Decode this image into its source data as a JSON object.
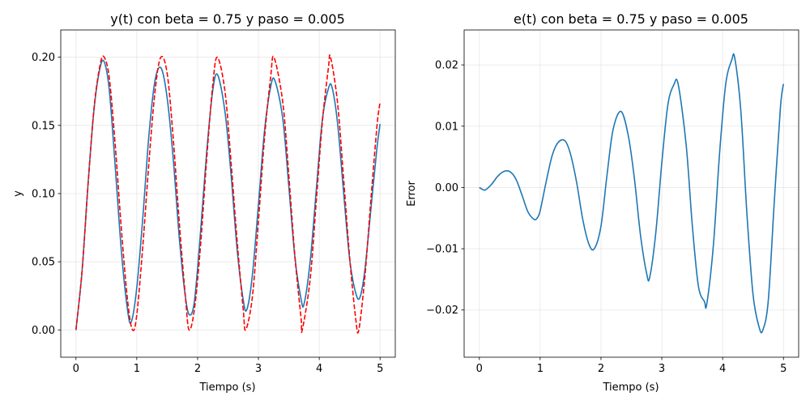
{
  "chart_data": [
    {
      "type": "line",
      "title": "y(t) con beta = 0.75 y paso = 0.005",
      "xlabel": "Tiempo (s)",
      "ylabel": "y",
      "xlim": [
        -0.25,
        5.25
      ],
      "ylim": [
        -0.02,
        0.22
      ],
      "xticks": [
        0,
        1,
        2,
        3,
        4,
        5
      ],
      "xtick_labels": [
        "0",
        "1",
        "2",
        "3",
        "4",
        "5"
      ],
      "yticks": [
        0.0,
        0.05,
        0.1,
        0.15,
        0.2
      ],
      "ytick_labels": [
        "0.00",
        "0.05",
        "0.10",
        "0.15",
        "0.20"
      ],
      "grid": true,
      "legend": false,
      "series": [
        {
          "style": "solid",
          "color": "#1f77b4",
          "x": [
            0,
            0.1,
            0.2,
            0.3,
            0.4,
            0.47,
            0.55,
            0.65,
            0.75,
            0.85,
            0.91,
            1.0,
            1.1,
            1.2,
            1.3,
            1.4,
            1.5,
            1.6,
            1.7,
            1.8,
            1.87,
            1.95,
            2.05,
            2.15,
            2.25,
            2.33,
            2.45,
            2.55,
            2.65,
            2.75,
            2.81,
            2.9,
            3.0,
            3.1,
            3.2,
            3.27,
            3.4,
            3.5,
            3.6,
            3.7,
            3.75,
            3.85,
            3.95,
            4.05,
            4.15,
            4.21,
            4.3,
            4.4,
            4.5,
            4.6,
            4.67,
            4.75,
            4.85,
            4.95,
            5.0
          ],
          "y": [
            0.0,
            0.043,
            0.108,
            0.163,
            0.193,
            0.196,
            0.175,
            0.117,
            0.056,
            0.014,
            0.006,
            0.031,
            0.083,
            0.143,
            0.183,
            0.192,
            0.17,
            0.125,
            0.067,
            0.024,
            0.011,
            0.022,
            0.073,
            0.131,
            0.176,
            0.187,
            0.16,
            0.114,
            0.059,
            0.022,
            0.015,
            0.04,
            0.092,
            0.146,
            0.178,
            0.183,
            0.155,
            0.105,
            0.053,
            0.023,
            0.019,
            0.05,
            0.102,
            0.154,
            0.177,
            0.178,
            0.152,
            0.101,
            0.052,
            0.027,
            0.024,
            0.044,
            0.089,
            0.134,
            0.151
          ]
        },
        {
          "style": "dashed",
          "color": "#ff0000",
          "x": [
            0,
            0.1,
            0.2,
            0.3,
            0.4,
            0.465,
            0.55,
            0.65,
            0.75,
            0.85,
            0.93,
            1.0,
            1.1,
            1.2,
            1.3,
            1.395,
            1.5,
            1.6,
            1.7,
            1.8,
            1.86,
            1.95,
            2.05,
            2.15,
            2.25,
            2.325,
            2.45,
            2.55,
            2.65,
            2.75,
            2.79,
            2.9,
            3.0,
            3.1,
            3.2,
            3.255,
            3.4,
            3.5,
            3.6,
            3.7,
            3.72,
            3.85,
            3.95,
            4.05,
            4.15,
            4.185,
            4.3,
            4.4,
            4.5,
            4.6,
            4.65,
            4.75,
            4.85,
            4.95,
            5.0
          ],
          "y": [
            0.0,
            0.043,
            0.107,
            0.164,
            0.195,
            0.2,
            0.184,
            0.133,
            0.072,
            0.021,
            0.0,
            0.011,
            0.062,
            0.123,
            0.175,
            0.2,
            0.188,
            0.14,
            0.078,
            0.024,
            0.0,
            0.016,
            0.063,
            0.126,
            0.18,
            0.2,
            0.175,
            0.123,
            0.065,
            0.015,
            0.0,
            0.024,
            0.08,
            0.141,
            0.185,
            0.2,
            0.167,
            0.113,
            0.054,
            0.009,
            0.0,
            0.037,
            0.094,
            0.152,
            0.192,
            0.2,
            0.167,
            0.111,
            0.053,
            0.008,
            0.0,
            0.039,
            0.096,
            0.15,
            0.167
          ]
        }
      ]
    },
    {
      "type": "line",
      "title": "e(t) con beta = 0.75 y paso = 0.005",
      "xlabel": "Tiempo (s)",
      "ylabel": "Error",
      "xlim": [
        -0.25,
        5.25
      ],
      "ylim": [
        -0.0277,
        0.0257
      ],
      "xticks": [
        0,
        1,
        2,
        3,
        4,
        5
      ],
      "xtick_labels": [
        "0",
        "1",
        "2",
        "3",
        "4",
        "5"
      ],
      "yticks": [
        -0.02,
        -0.01,
        0.0,
        0.01,
        0.02
      ],
      "ytick_labels": [
        "−0.02",
        "−0.01",
        "0.00",
        "0.01",
        "0.02"
      ],
      "grid": true,
      "legend": false,
      "series": [
        {
          "style": "solid",
          "color": "#1f77b4",
          "x": [
            0,
            0.05,
            0.1,
            0.2,
            0.3,
            0.4,
            0.5,
            0.6,
            0.7,
            0.8,
            0.9,
            0.95,
            1.0,
            1.1,
            1.2,
            1.3,
            1.41,
            1.5,
            1.6,
            1.7,
            1.8,
            1.89,
            2.0,
            2.1,
            2.2,
            2.33,
            2.45,
            2.55,
            2.65,
            2.75,
            2.8,
            2.9,
            3.0,
            3.1,
            3.2,
            3.27,
            3.4,
            3.5,
            3.6,
            3.7,
            3.74,
            3.85,
            3.95,
            4.05,
            4.15,
            4.2,
            4.3,
            4.4,
            4.5,
            4.6,
            4.66,
            4.75,
            4.85,
            4.95,
            5.0
          ],
          "y": [
            0.0,
            -0.0003,
            -0.0004,
            0.0005,
            0.0018,
            0.0026,
            0.0026,
            0.0014,
            -0.0012,
            -0.004,
            -0.0052,
            -0.005,
            -0.0038,
            0.001,
            0.0053,
            0.0074,
            0.0076,
            0.0054,
            0.0008,
            -0.0052,
            -0.0092,
            -0.01,
            -0.0063,
            0.0021,
            0.0095,
            0.0124,
            0.0084,
            0.0014,
            -0.0078,
            -0.014,
            -0.0147,
            -0.0075,
            0.004,
            0.0135,
            0.0168,
            0.0168,
            0.007,
            -0.006,
            -0.016,
            -0.0186,
            -0.019,
            -0.0092,
            0.0056,
            0.0168,
            0.0208,
            0.0211,
            0.0124,
            -0.0044,
            -0.0175,
            -0.0228,
            -0.0233,
            -0.0185,
            -0.0022,
            0.013,
            0.0169
          ]
        }
      ]
    }
  ]
}
